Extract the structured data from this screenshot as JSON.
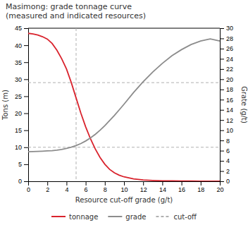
{
  "chart_data": {
    "type": "line",
    "title": "Masimong: grade tonnage curve\n(measured and indicated resources)",
    "xlabel": "Resource cut-off grade (g/t)",
    "ylabel": "Tons (m)",
    "y2label": "Grate (g/t)",
    "xlim": [
      0,
      20
    ],
    "xticks": [
      0,
      2,
      4,
      6,
      8,
      10,
      12,
      14,
      16,
      18,
      20
    ],
    "ylim": [
      0,
      45
    ],
    "yticks": [
      0,
      5,
      10,
      15,
      20,
      25,
      30,
      35,
      40,
      45
    ],
    "y2lim": [
      0,
      30
    ],
    "y2ticks": [
      0,
      2,
      4,
      6,
      8,
      10,
      12,
      14,
      16,
      18,
      20,
      22,
      24,
      26,
      28,
      30
    ],
    "grid": false,
    "legend": "bottom",
    "x": [
      0,
      0.5,
      1,
      1.5,
      2,
      2.5,
      3,
      3.5,
      4,
      4.5,
      5,
      5.5,
      6,
      6.5,
      7,
      7.5,
      8,
      8.5,
      9,
      9.5,
      10,
      11,
      12,
      13,
      14,
      15,
      16,
      17,
      18,
      19,
      20
    ],
    "series": [
      {
        "name": "tonnage",
        "color": "#d9232d",
        "values": [
          43.5,
          43.3,
          43.0,
          42.5,
          41.8,
          40.5,
          38.5,
          36.0,
          33.0,
          29.0,
          24.5,
          20.0,
          16.0,
          12.5,
          9.5,
          7.0,
          5.0,
          3.5,
          2.5,
          1.8,
          1.3,
          0.7,
          0.4,
          0.25,
          0.15,
          0.1,
          0.07,
          0.05,
          0.04,
          0.03,
          0.02
        ]
      },
      {
        "name": "grade",
        "color": "#8c8c8c",
        "axis": "y2",
        "values": [
          5.8,
          5.82,
          5.85,
          5.9,
          5.95,
          6.0,
          6.1,
          6.25,
          6.45,
          6.7,
          7.0,
          7.4,
          7.9,
          8.5,
          9.2,
          10.0,
          10.9,
          11.9,
          12.9,
          14.0,
          15.1,
          17.4,
          19.5,
          21.4,
          23.1,
          24.6,
          25.8,
          26.8,
          27.5,
          27.9,
          27.5
        ]
      }
    ],
    "cutoff": {
      "name": "cut-off",
      "color": "#b0b0b0",
      "line_style": "dashed",
      "x": [
        5
      ],
      "y": [
        10,
        29
      ]
    }
  }
}
